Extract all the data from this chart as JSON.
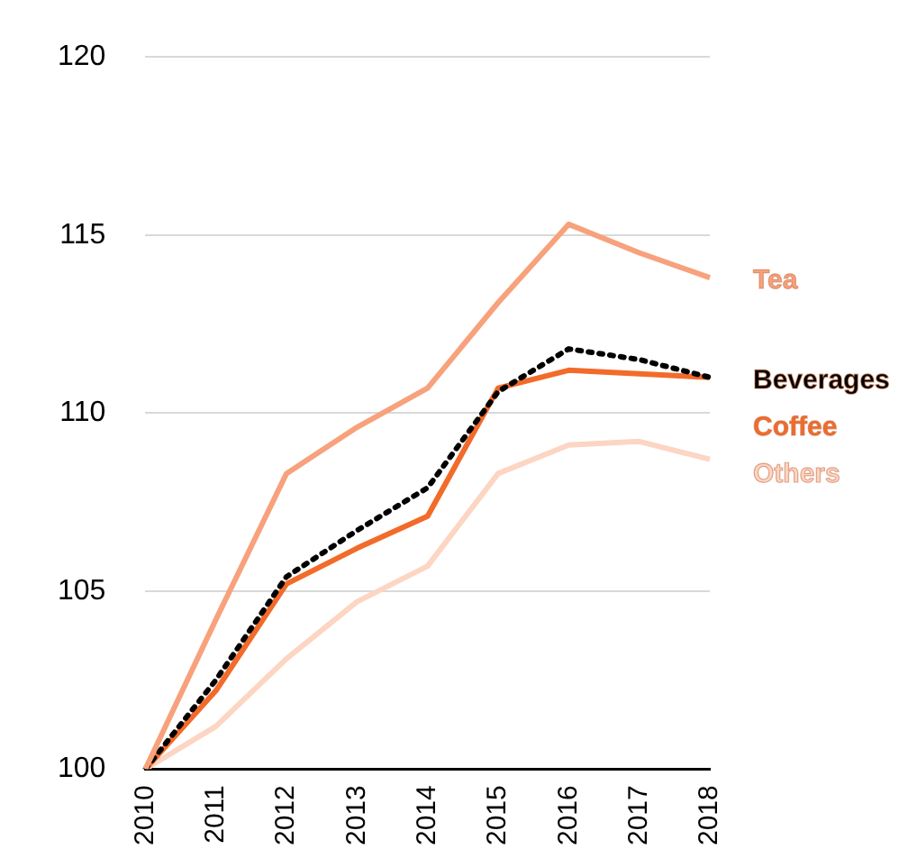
{
  "chart_data": {
    "type": "line",
    "categories": [
      "2010",
      "2011",
      "2012",
      "2013",
      "2014",
      "2015",
      "2016",
      "2017",
      "2018"
    ],
    "series": [
      {
        "name": "Tea",
        "color": "#f7a27c",
        "values": [
          100,
          104.2,
          108.3,
          109.6,
          110.7,
          113.1,
          115.3,
          114.5,
          113.8
        ]
      },
      {
        "name": "Beverages",
        "color": "#000000",
        "line_style": "dotted",
        "values": [
          100,
          102.5,
          105.4,
          106.7,
          107.9,
          110.6,
          111.8,
          111.5,
          111.0
        ]
      },
      {
        "name": "Coffee",
        "color": "#f26b2a",
        "values": [
          100,
          102.2,
          105.2,
          106.2,
          107.1,
          110.7,
          111.2,
          111.1,
          111.0
        ]
      },
      {
        "name": "Others",
        "color": "#fdd5c3",
        "values": [
          100,
          101.2,
          103.1,
          104.7,
          105.7,
          108.3,
          109.1,
          109.2,
          108.7
        ]
      }
    ],
    "ylim": [
      100,
      120
    ],
    "yticks": [
      100,
      105,
      110,
      115,
      120
    ],
    "grid": "y",
    "legend": false,
    "marker": "none",
    "line_style": "solid"
  }
}
